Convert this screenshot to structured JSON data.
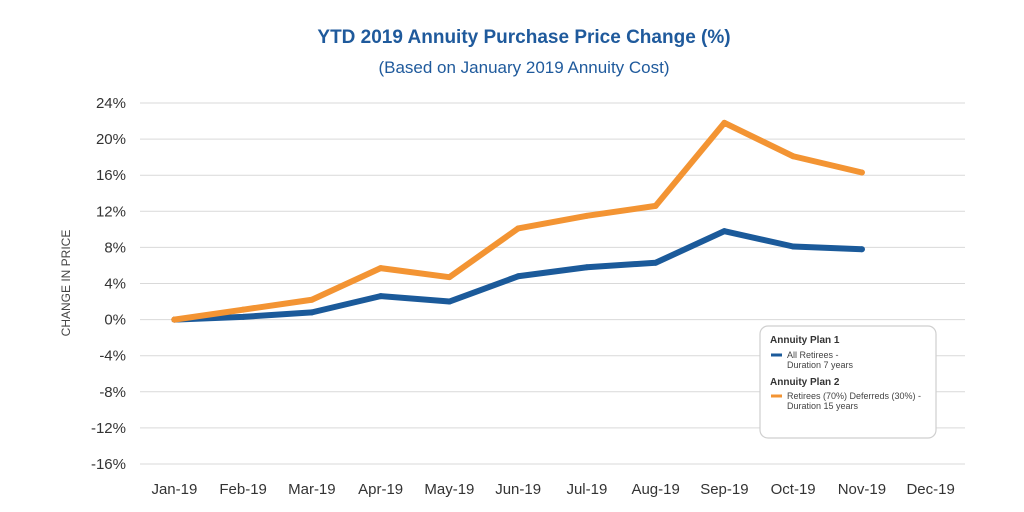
{
  "colors": {
    "plan1": "#1b5a9a",
    "plan2": "#f39433",
    "title": "#1f5a9c"
  },
  "chart_data": {
    "type": "line",
    "title": "YTD 2019 Annuity Purchase Price Change (%)",
    "subtitle": "(Based on January 2019 Annuity Cost)",
    "ylabel": "CHANGE IN PRICE",
    "xlabel": "",
    "categories": [
      "Jan-19",
      "Feb-19",
      "Mar-19",
      "Apr-19",
      "May-19",
      "Jun-19",
      "Jul-19",
      "Aug-19",
      "Sep-19",
      "Oct-19",
      "Nov-19",
      "Dec-19"
    ],
    "yticks": [
      24,
      20,
      16,
      12,
      8,
      4,
      0,
      -4,
      -8,
      -12,
      -16
    ],
    "ytick_labels": [
      "24%",
      "20%",
      "16%",
      "12%",
      "8%",
      "4%",
      "0%",
      "-4%",
      "-8%",
      "-12%",
      "-16%"
    ],
    "ylim": [
      -16,
      24
    ],
    "grid": true,
    "series": [
      {
        "name": "All Retirees - Duration 7 years",
        "group": "Annuity Plan 1",
        "label_lines": [
          "All Retirees -",
          "Duration 7 years"
        ],
        "color": "#1b5a9a",
        "values": [
          0,
          0.3,
          0.8,
          2.6,
          2.0,
          4.8,
          5.8,
          6.3,
          9.8,
          8.1,
          7.8,
          null
        ]
      },
      {
        "name": "Retirees (70%) Deferreds (30%) - Duration 15 years",
        "group": "Annuity Plan 2",
        "label_lines": [
          "Retirees (70%) Deferreds (30%) -",
          "Duration 15 years"
        ],
        "color": "#f39433",
        "values": [
          0,
          1.1,
          2.2,
          5.7,
          4.7,
          10.1,
          11.5,
          12.6,
          21.8,
          18.1,
          16.3,
          null
        ]
      }
    ],
    "legend": {
      "position": "bottom-right"
    }
  }
}
